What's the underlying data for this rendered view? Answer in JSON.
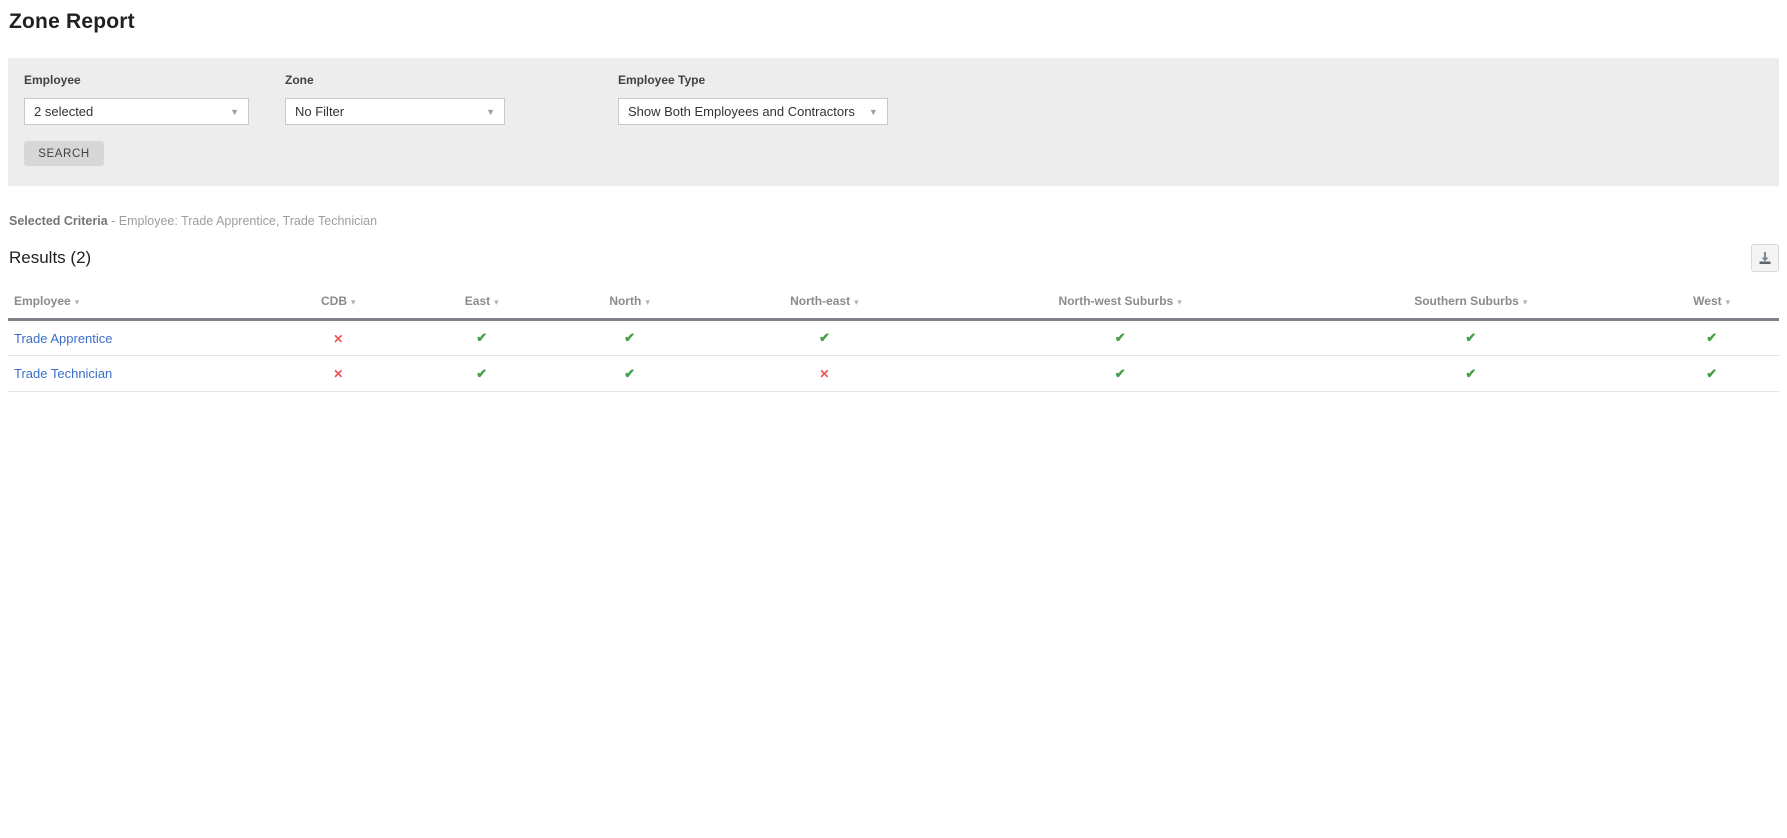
{
  "page": {
    "title": "Zone Report"
  },
  "filters": {
    "employee": {
      "label": "Employee",
      "value": "2 selected"
    },
    "zone": {
      "label": "Zone",
      "value": "No Filter"
    },
    "employee_type": {
      "label": "Employee Type",
      "value": "Show Both Employees and Contractors"
    },
    "search_label": "SEARCH"
  },
  "criteria": {
    "label": "Selected Criteria",
    "text": "- Employee: Trade Apprentice, Trade Technician"
  },
  "results": {
    "title": "Results (2)"
  },
  "table": {
    "columns": [
      {
        "label": "Employee",
        "align": "left"
      },
      {
        "label": "CDB"
      },
      {
        "label": "East"
      },
      {
        "label": "North"
      },
      {
        "label": "North-east"
      },
      {
        "label": "North-west Suburbs"
      },
      {
        "label": "Southern Suburbs"
      },
      {
        "label": "West"
      }
    ],
    "rows": [
      {
        "employee": "Trade Apprentice",
        "zones": [
          "no",
          "yes",
          "yes",
          "yes",
          "yes",
          "yes",
          "yes"
        ]
      },
      {
        "employee": "Trade Technician",
        "zones": [
          "no",
          "yes",
          "yes",
          "no",
          "yes",
          "yes",
          "yes"
        ]
      }
    ]
  },
  "icons": {
    "dropdown_arrow": "▼",
    "sort_arrow": "▾",
    "check": "✔",
    "cross": "✕",
    "download": "download-icon"
  },
  "colors": {
    "panel_gray": "#ededed",
    "check_green": "#43a047",
    "cross_red": "#ef5350",
    "link_blue": "#3b6fc7"
  }
}
